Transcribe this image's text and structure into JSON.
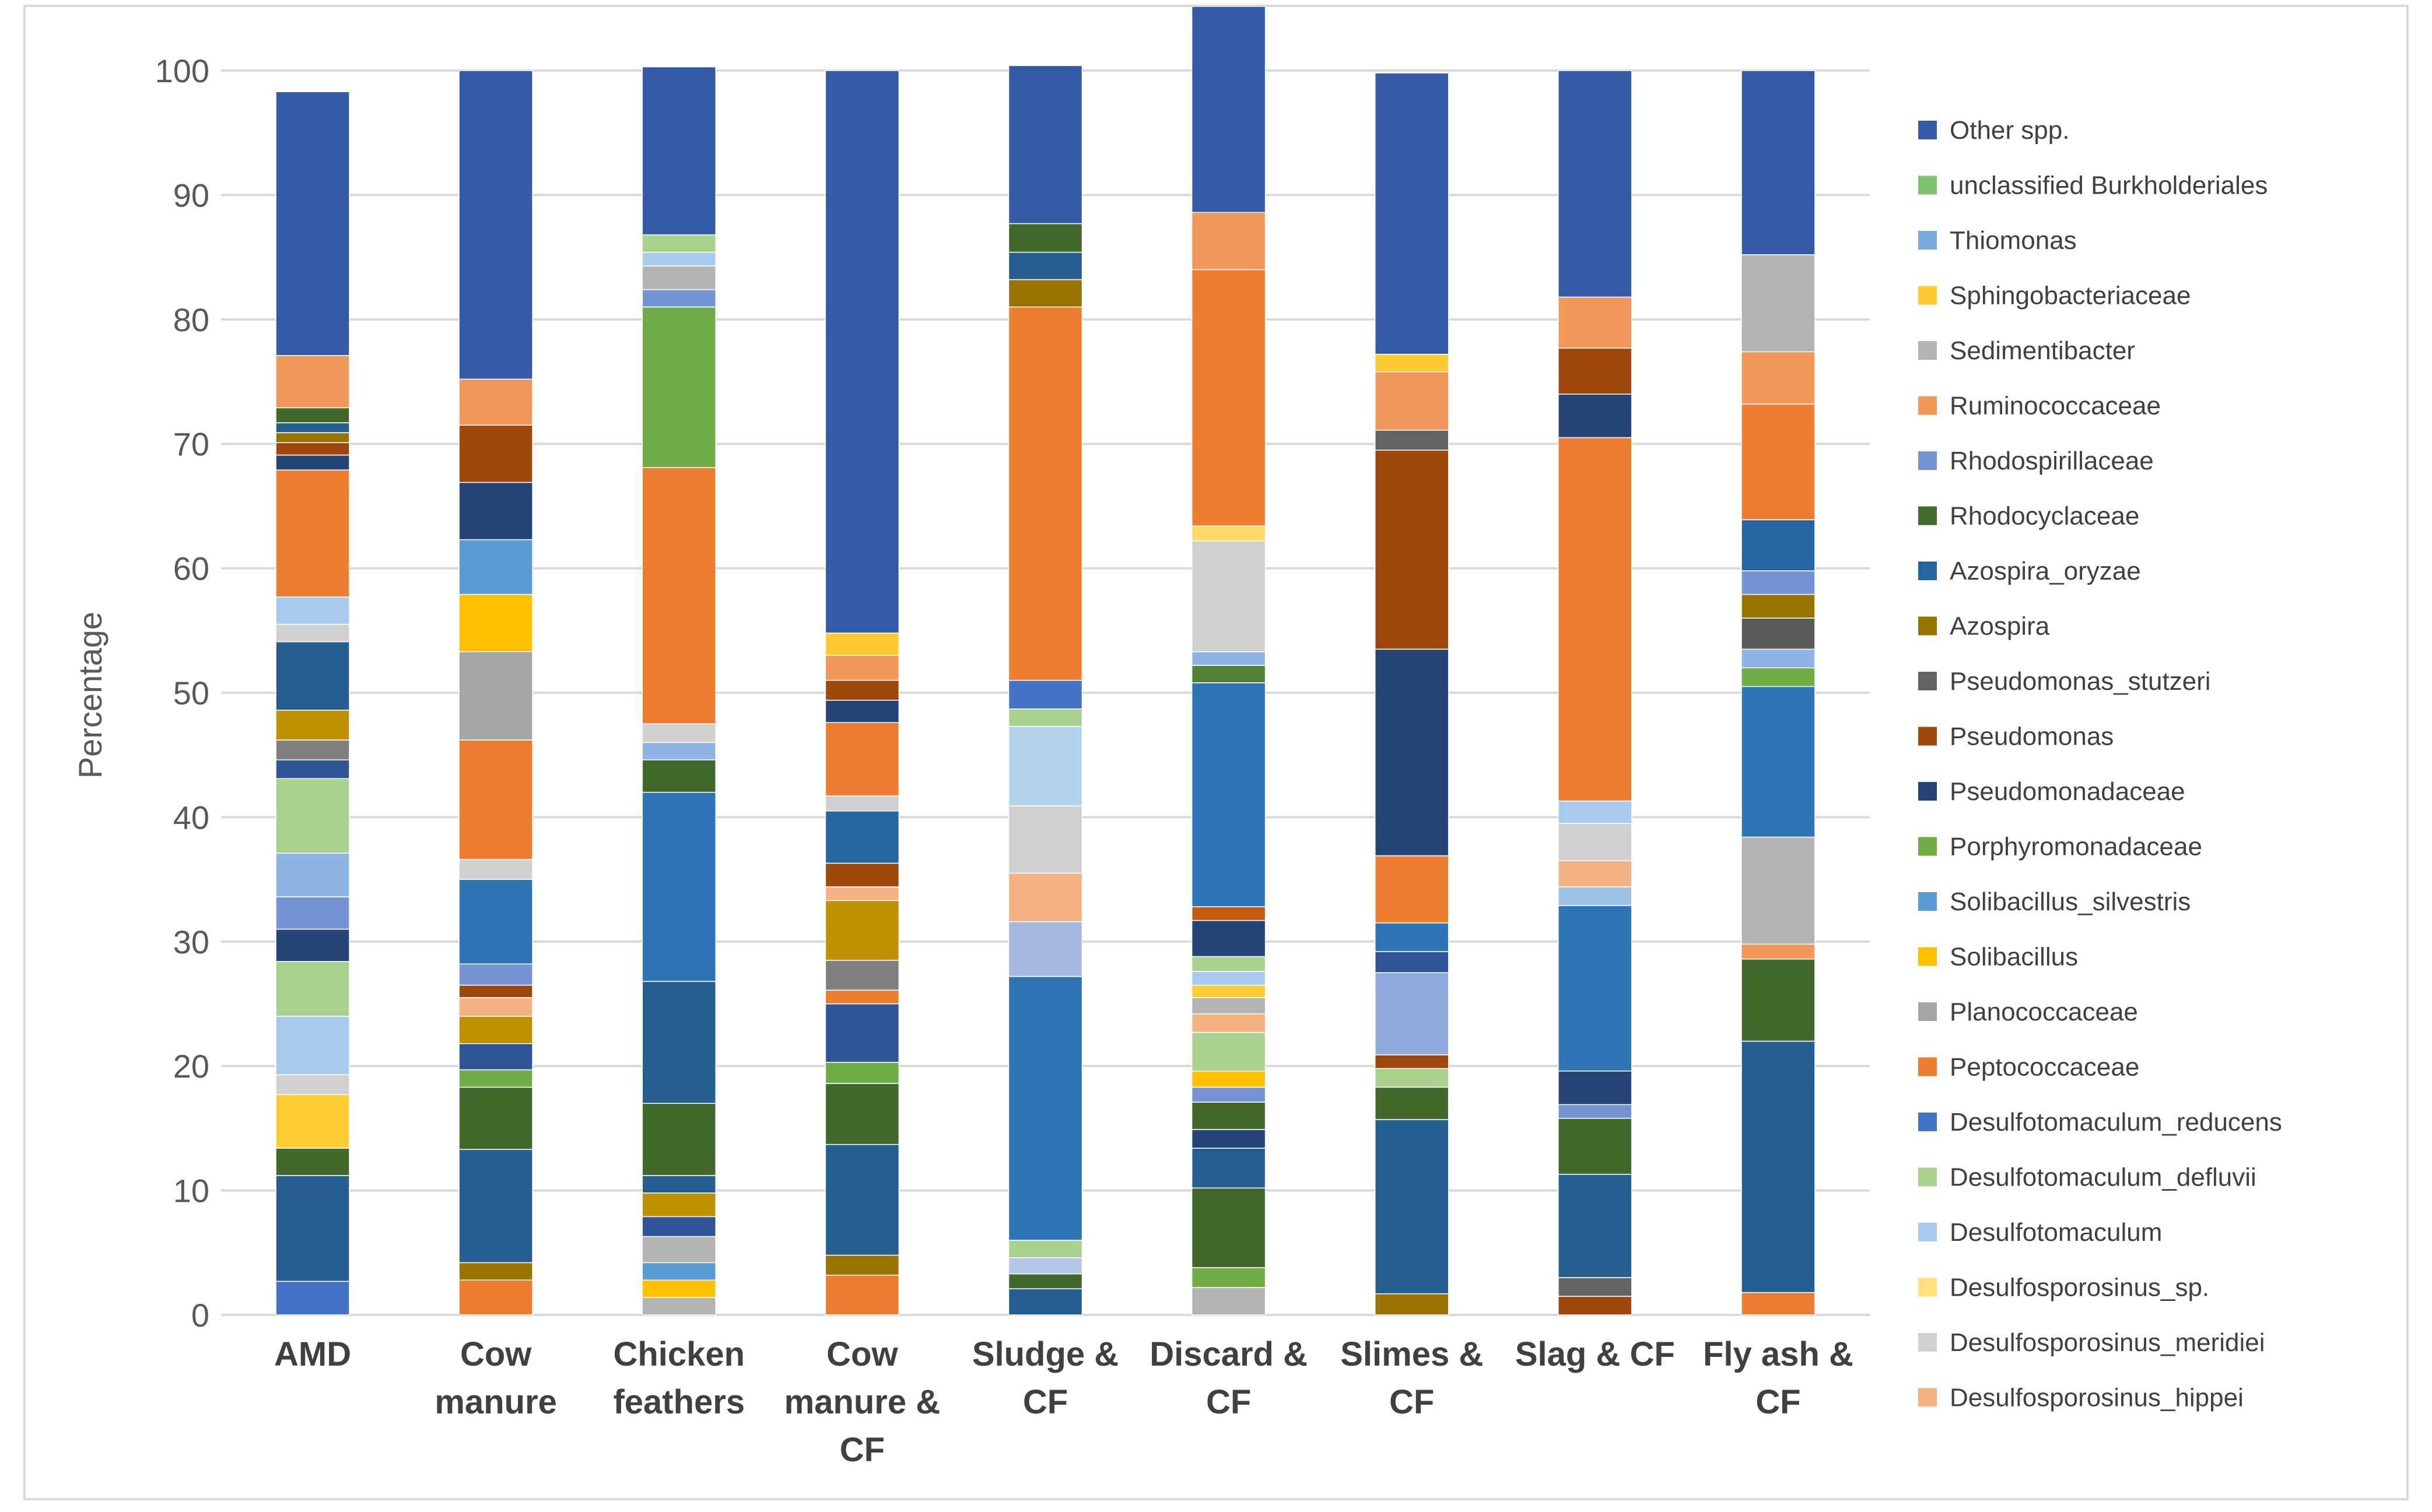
{
  "chart_data": {
    "type": "bar",
    "stacked": true,
    "ylabel": "Percentage",
    "ylim": [
      0,
      100
    ],
    "yticks": [
      0,
      10,
      20,
      30,
      40,
      50,
      60,
      70,
      80,
      90,
      100
    ],
    "grid": true,
    "legend_position": "right",
    "categories": [
      [
        "AMD"
      ],
      [
        "Cow",
        "manure"
      ],
      [
        "Chicken",
        "feathers"
      ],
      [
        "Cow",
        "manure &",
        "CF"
      ],
      [
        "Sludge &",
        "CF"
      ],
      [
        "Discard &",
        "CF"
      ],
      [
        "Slimes &",
        "CF"
      ],
      [
        "Slag & CF"
      ],
      [
        "Fly ash &",
        "CF"
      ]
    ],
    "category_names": [
      "AMD",
      "Cow manure",
      "Chicken feathers",
      "Cow manure & CF",
      "Sludge & CF",
      "Discard & CF",
      "Slimes & CF",
      "Slag & CF",
      "Fly ash & CF"
    ],
    "legend": [
      {
        "name": "Other spp.",
        "color": "#325AA5"
      },
      {
        "name": "unclassified Burkholderiales",
        "color": "#7EC16F"
      },
      {
        "name": "Thiomonas",
        "color": "#78A8DC"
      },
      {
        "name": "Sphingobacteriaceae",
        "color": "#FFC930"
      },
      {
        "name": "Sedimentibacter",
        "color": "#B3B3B3"
      },
      {
        "name": "Ruminococcaceae",
        "color": "#F1975A"
      },
      {
        "name": "Rhodospirillaceae",
        "color": "#7493D2"
      },
      {
        "name": "Rhodocyclaceae",
        "color": "#3F6B2C"
      },
      {
        "name": "Azospira_oryzae",
        "color": "#2565A2"
      },
      {
        "name": "Azospira",
        "color": "#997300"
      },
      {
        "name": "Pseudomonas_stutzeri",
        "color": "#636363"
      },
      {
        "name": "Pseudomonas",
        "color": "#9E480E"
      },
      {
        "name": "Pseudomonadaceae",
        "color": "#264478"
      },
      {
        "name": "Porphyromonadaceae",
        "color": "#70AD47"
      },
      {
        "name": "Solibacillus_silvestris",
        "color": "#5B9BD5"
      },
      {
        "name": "Solibacillus",
        "color": "#FFC000"
      },
      {
        "name": "Planococcaceae",
        "color": "#A5A5A5"
      },
      {
        "name": "Peptococcaceae",
        "color": "#ED7D31"
      },
      {
        "name": "Desulfotomaculum_reducens",
        "color": "#4472C4"
      },
      {
        "name": "Desulfotomaculum_defluvii",
        "color": "#A9D18E"
      },
      {
        "name": "Desulfotomaculum",
        "color": "#A8CAEC"
      },
      {
        "name": "Desulfosporosinus_sp.",
        "color": "#FFE07A"
      },
      {
        "name": "Desulfosporosinus_meridiei",
        "color": "#D0D0D0"
      },
      {
        "name": "Desulfosporosinus_hippei",
        "color": "#F4B183"
      }
    ],
    "bars": [
      [
        [
          2.7,
          "#4472C4"
        ],
        [
          8.5,
          "#255E91"
        ],
        [
          2.2,
          "#43682B"
        ],
        [
          4.3,
          "#FFCD33"
        ],
        [
          1.6,
          "#D0D0D0"
        ],
        [
          4.7,
          "#A8CAEC"
        ],
        [
          4.4,
          "#A9D18E"
        ],
        [
          2.6,
          "#264478"
        ],
        [
          2.6,
          "#7493D2"
        ],
        [
          3.5,
          "#8EB4E3"
        ],
        [
          6.0,
          "#A9D18E"
        ],
        [
          1.5,
          "#2F5597"
        ],
        [
          1.6,
          "#7F7F7F"
        ],
        [
          2.4,
          "#BF9000"
        ],
        [
          5.5,
          "#255E91"
        ],
        [
          1.4,
          "#D0D0D0"
        ],
        [
          2.2,
          "#A8CAEC"
        ],
        [
          10.2,
          "#ED7D31"
        ],
        [
          1.2,
          "#264478"
        ],
        [
          1.0,
          "#9E480E"
        ],
        [
          0.8,
          "#997300"
        ],
        [
          0.8,
          "#255E91"
        ],
        [
          1.2,
          "#43682B"
        ],
        [
          4.2,
          "#F1975A"
        ],
        [
          21.2,
          "#325AA5"
        ]
      ],
      [
        [
          2.8,
          "#ED7D31"
        ],
        [
          1.4,
          "#997300"
        ],
        [
          9.1,
          "#255E91"
        ],
        [
          5.0,
          "#43682B"
        ],
        [
          1.4,
          "#70AD47"
        ],
        [
          2.1,
          "#2F5597"
        ],
        [
          2.2,
          "#BF9000"
        ],
        [
          1.5,
          "#F4B183"
        ],
        [
          1.0,
          "#9E480E"
        ],
        [
          1.7,
          "#7493D2"
        ],
        [
          6.8,
          "#2E75B6"
        ],
        [
          1.6,
          "#D0D0D0"
        ],
        [
          9.6,
          "#ED7D31"
        ],
        [
          7.1,
          "#A5A5A5"
        ],
        [
          4.6,
          "#FFC000"
        ],
        [
          4.4,
          "#5B9BD5"
        ],
        [
          4.6,
          "#264478"
        ],
        [
          4.6,
          "#9E480E"
        ],
        [
          3.7,
          "#F1975A"
        ],
        [
          24.8,
          "#325AA5"
        ]
      ],
      [
        [
          1.4,
          "#B3B3B3"
        ],
        [
          1.4,
          "#FFC000"
        ],
        [
          1.4,
          "#5B9BD5"
        ],
        [
          2.1,
          "#B3B3B3"
        ],
        [
          1.6,
          "#2F5597"
        ],
        [
          1.9,
          "#BF9000"
        ],
        [
          1.4,
          "#255E91"
        ],
        [
          5.8,
          "#43682B"
        ],
        [
          9.8,
          "#255E91"
        ],
        [
          15.2,
          "#2E75B6"
        ],
        [
          2.6,
          "#43682B"
        ],
        [
          1.4,
          "#8EB4E3"
        ],
        [
          1.5,
          "#D0D0D0"
        ],
        [
          20.6,
          "#ED7D31"
        ],
        [
          12.9,
          "#70AD47"
        ],
        [
          1.4,
          "#7493D2"
        ],
        [
          1.9,
          "#B3B3B3"
        ],
        [
          1.1,
          "#A8CAEC"
        ],
        [
          1.4,
          "#A9D18E"
        ],
        [
          13.5,
          "#325AA5"
        ]
      ],
      [
        [
          3.2,
          "#ED7D31"
        ],
        [
          1.6,
          "#997300"
        ],
        [
          8.9,
          "#255E91"
        ],
        [
          4.9,
          "#43682B"
        ],
        [
          1.7,
          "#70AD47"
        ],
        [
          4.7,
          "#2F5597"
        ],
        [
          1.1,
          "#ED7D31"
        ],
        [
          2.4,
          "#7F7F7F"
        ],
        [
          4.8,
          "#BF9000"
        ],
        [
          1.1,
          "#F4B183"
        ],
        [
          1.9,
          "#9E480E"
        ],
        [
          4.2,
          "#2565A2"
        ],
        [
          1.2,
          "#D0D0D0"
        ],
        [
          5.9,
          "#ED7D31"
        ],
        [
          1.8,
          "#264478"
        ],
        [
          1.6,
          "#9E480E"
        ],
        [
          2.0,
          "#F1975A"
        ],
        [
          1.8,
          "#FFC930"
        ],
        [
          45.2,
          "#325AA5"
        ]
      ],
      [
        [
          2.1,
          "#255E91"
        ],
        [
          1.2,
          "#43682B"
        ],
        [
          1.3,
          "#B4C7E7"
        ],
        [
          1.4,
          "#A9D18E"
        ],
        [
          21.2,
          "#2E75B6"
        ],
        [
          4.4,
          "#A5B8E0"
        ],
        [
          3.9,
          "#F4B183"
        ],
        [
          5.4,
          "#D0D0D0"
        ],
        [
          6.4,
          "#B4D3ED"
        ],
        [
          1.4,
          "#A9D18E"
        ],
        [
          2.3,
          "#4472C4"
        ],
        [
          30.0,
          "#ED7D31"
        ],
        [
          2.2,
          "#997300"
        ],
        [
          2.2,
          "#255E91"
        ],
        [
          2.3,
          "#43682B"
        ],
        [
          12.7,
          "#325AA5"
        ]
      ],
      [
        [
          2.2,
          "#B3B3B3"
        ],
        [
          1.6,
          "#70AD47"
        ],
        [
          6.4,
          "#43682B"
        ],
        [
          3.2,
          "#255E91"
        ],
        [
          1.5,
          "#264478"
        ],
        [
          2.2,
          "#43682B"
        ],
        [
          1.2,
          "#7493D2"
        ],
        [
          1.3,
          "#FFC000"
        ],
        [
          3.1,
          "#A9D18E"
        ],
        [
          1.5,
          "#F4B183"
        ],
        [
          1.3,
          "#B3B3B3"
        ],
        [
          1.0,
          "#FFCD33"
        ],
        [
          1.1,
          "#A8CAEC"
        ],
        [
          1.2,
          "#A9D18E"
        ],
        [
          2.9,
          "#264478"
        ],
        [
          1.1,
          "#C55A11"
        ],
        [
          18.0,
          "#2E75B6"
        ],
        [
          1.4,
          "#548235"
        ],
        [
          1.1,
          "#8EB4E3"
        ],
        [
          8.9,
          "#D0D0D0"
        ],
        [
          1.2,
          "#FFD966"
        ],
        [
          20.6,
          "#ED7D31"
        ],
        [
          4.6,
          "#F1975A"
        ],
        [
          19.0,
          "#325AA5"
        ]
      ],
      [
        [
          1.7,
          "#997300"
        ],
        [
          14.0,
          "#255E91"
        ],
        [
          2.6,
          "#43682B"
        ],
        [
          1.5,
          "#A9D18E"
        ],
        [
          1.1,
          "#9E480E"
        ],
        [
          6.6,
          "#8FAADC"
        ],
        [
          1.7,
          "#2F5597"
        ],
        [
          2.3,
          "#2E75B6"
        ],
        [
          5.4,
          "#ED7D31"
        ],
        [
          16.6,
          "#264478"
        ],
        [
          16.0,
          "#9E480E"
        ],
        [
          1.6,
          "#636363"
        ],
        [
          4.7,
          "#F1975A"
        ],
        [
          1.4,
          "#FFC930"
        ],
        [
          22.6,
          "#325AA5"
        ]
      ],
      [
        [
          1.5,
          "#9E480E"
        ],
        [
          1.5,
          "#636363"
        ],
        [
          8.3,
          "#255E91"
        ],
        [
          4.5,
          "#43682B"
        ],
        [
          1.1,
          "#7493D2"
        ],
        [
          2.7,
          "#264478"
        ],
        [
          13.3,
          "#2E75B6"
        ],
        [
          1.5,
          "#9DC3E6"
        ],
        [
          2.1,
          "#F4B183"
        ],
        [
          3.0,
          "#D0D0D0"
        ],
        [
          1.8,
          "#A8CAEC"
        ],
        [
          29.2,
          "#ED7D31"
        ],
        [
          3.5,
          "#264478"
        ],
        [
          3.7,
          "#9E480E"
        ],
        [
          4.1,
          "#F1975A"
        ],
        [
          18.2,
          "#325AA5"
        ]
      ],
      [
        [
          1.8,
          "#ED7D31"
        ],
        [
          20.2,
          "#255E91"
        ],
        [
          6.6,
          "#43682B"
        ],
        [
          1.2,
          "#F1975A"
        ],
        [
          8.6,
          "#B3B3B3"
        ],
        [
          12.1,
          "#2E75B6"
        ],
        [
          1.5,
          "#70AD47"
        ],
        [
          1.5,
          "#8EB4E3"
        ],
        [
          2.5,
          "#595959"
        ],
        [
          1.9,
          "#997300"
        ],
        [
          1.9,
          "#7493D2"
        ],
        [
          4.1,
          "#2565A2"
        ],
        [
          9.3,
          "#ED7D31"
        ],
        [
          4.2,
          "#F1975A"
        ],
        [
          7.8,
          "#B3B3B3"
        ],
        [
          14.8,
          "#325AA5"
        ]
      ]
    ]
  }
}
